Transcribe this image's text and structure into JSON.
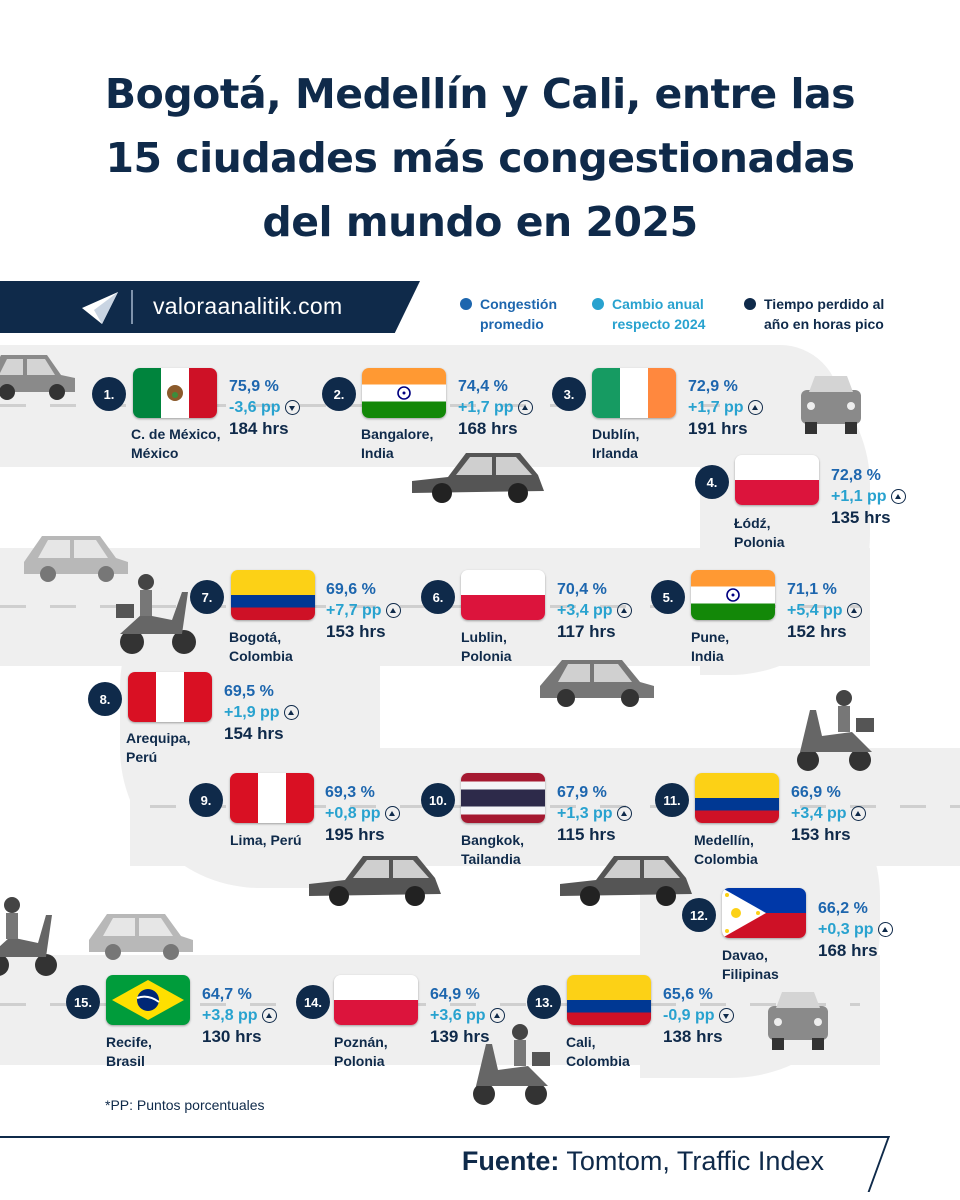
{
  "title": [
    "Bogotá, Medellín y Cali, entre las",
    "15 ciudades más congestionadas",
    "del mundo en 2025"
  ],
  "brand": {
    "site": "valoraanalitik.com",
    "logo_icon": "paper-plane-icon"
  },
  "legend": [
    {
      "label": "Congestión promedio",
      "color": "#1d66ae"
    },
    {
      "label": "Cambio anual respecto 2024",
      "color": "#28a2cf"
    },
    {
      "label": "Tiempo perdido al año en horas pico",
      "color": "#0f2a4a"
    }
  ],
  "cities": [
    {
      "rank": "1.",
      "city": "C. de México,",
      "country": "México",
      "flag": "mexico",
      "pct": "75,9 %",
      "chg": "-3,6 pp",
      "dir": "down",
      "hrs": "184 hrs"
    },
    {
      "rank": "2.",
      "city": "Bangalore,",
      "country": "India",
      "flag": "india",
      "pct": "74,4 %",
      "chg": "+1,7 pp",
      "dir": "up",
      "hrs": "168 hrs"
    },
    {
      "rank": "3.",
      "city": "Dublín,",
      "country": "Irlanda",
      "flag": "ireland",
      "pct": "72,9 %",
      "chg": "+1,7 pp",
      "dir": "up",
      "hrs": "191 hrs"
    },
    {
      "rank": "4.",
      "city": "Łódź,",
      "country": "Polonia",
      "flag": "poland",
      "pct": "72,8 %",
      "chg": "+1,1 pp",
      "dir": "up",
      "hrs": "135 hrs"
    },
    {
      "rank": "5.",
      "city": "Pune,",
      "country": "India",
      "flag": "india",
      "pct": "71,1 %",
      "chg": "+5,4 pp",
      "dir": "up",
      "hrs": "152 hrs"
    },
    {
      "rank": "6.",
      "city": "Lublin,",
      "country": "Polonia",
      "flag": "poland",
      "pct": "70,4 %",
      "chg": "+3,4 pp",
      "dir": "up",
      "hrs": "117 hrs"
    },
    {
      "rank": "7.",
      "city": "Bogotá,",
      "country": "Colombia",
      "flag": "colombia",
      "pct": "69,6 %",
      "chg": "+7,7 pp",
      "dir": "up",
      "hrs": "153 hrs"
    },
    {
      "rank": "8.",
      "city": "Arequipa,",
      "country": "Perú",
      "flag": "peru",
      "pct": "69,5 %",
      "chg": "+1,9 pp",
      "dir": "up",
      "hrs": "154 hrs"
    },
    {
      "rank": "9.",
      "city": "Lima, Perú",
      "country": "",
      "flag": "peru",
      "pct": "69,3 %",
      "chg": "+0,8 pp",
      "dir": "up",
      "hrs": "195 hrs"
    },
    {
      "rank": "10.",
      "city": "Bangkok,",
      "country": "Tailandia",
      "flag": "thailand",
      "pct": "67,9 %",
      "chg": "+1,3 pp",
      "dir": "up",
      "hrs": "115 hrs"
    },
    {
      "rank": "11.",
      "city": "Medellín,",
      "country": "Colombia",
      "flag": "colombia",
      "pct": "66,9 %",
      "chg": "+3,4 pp",
      "dir": "up",
      "hrs": "153 hrs"
    },
    {
      "rank": "12.",
      "city": "Davao,",
      "country": "Filipinas",
      "flag": "philippines",
      "pct": "66,2 %",
      "chg": "+0,3 pp",
      "dir": "up",
      "hrs": "168 hrs"
    },
    {
      "rank": "13.",
      "city": "Cali,",
      "country": "Colombia",
      "flag": "colombia",
      "pct": "65,6 %",
      "chg": "-0,9 pp",
      "dir": "down",
      "hrs": "138 hrs"
    },
    {
      "rank": "14.",
      "city": "Poznán,",
      "country": "Polonia",
      "flag": "poland",
      "pct": "64,9 %",
      "chg": "+3,6 pp",
      "dir": "up",
      "hrs": "139 hrs"
    },
    {
      "rank": "15.",
      "city": "Recife,",
      "country": "Brasil",
      "flag": "brazil",
      "pct": "64,7 %",
      "chg": "+3,8 pp",
      "dir": "up",
      "hrs": "130 hrs"
    }
  ],
  "footnote": "*PP: Puntos porcentuales",
  "source": {
    "label": "Fuente:",
    "value": "Tomtom, Traffic Index"
  }
}
